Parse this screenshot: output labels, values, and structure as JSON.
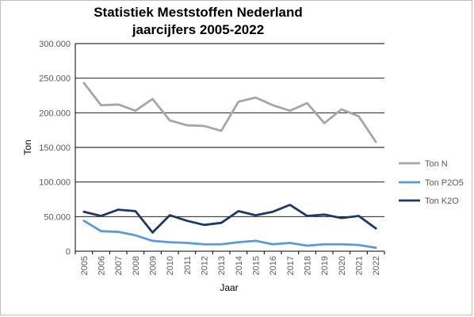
{
  "chart_data": {
    "type": "line",
    "title_line1": "Statistiek Meststoffen Nederland",
    "title_line2": "jaarcijfers 2005-2022",
    "xlabel": "Jaar",
    "ylabel": "Ton",
    "ylim": [
      0,
      300000
    ],
    "yticks": [
      "0",
      "50.000",
      "100.000",
      "150.000",
      "200.000",
      "250.000",
      "300.000"
    ],
    "grid": true,
    "legend_position": "right",
    "categories": [
      "2005",
      "2006",
      "2007",
      "2008",
      "2009",
      "2010",
      "2011",
      "2012",
      "2013",
      "2014",
      "2015",
      "2016",
      "2017",
      "2018",
      "2019",
      "2020",
      "2021",
      "2022"
    ],
    "series": [
      {
        "name": "Ton N",
        "color": "#a6a6a6",
        "values": [
          243000,
          211000,
          212000,
          203000,
          220000,
          189000,
          182000,
          181000,
          174000,
          216000,
          222000,
          211000,
          203000,
          214000,
          185000,
          205000,
          195000,
          158000
        ]
      },
      {
        "name": "Ton P2O5",
        "color": "#5b9bd5",
        "values": [
          44000,
          29000,
          28000,
          23000,
          15000,
          13000,
          12000,
          10000,
          10000,
          13000,
          15000,
          10000,
          12000,
          8000,
          10000,
          10000,
          9000,
          5000
        ]
      },
      {
        "name": "Ton K2O",
        "color": "#1f3864",
        "values": [
          57000,
          51000,
          60000,
          58000,
          27000,
          52000,
          44000,
          38000,
          41000,
          58000,
          52000,
          57000,
          67000,
          51000,
          53000,
          48000,
          51000,
          33000
        ]
      }
    ]
  }
}
